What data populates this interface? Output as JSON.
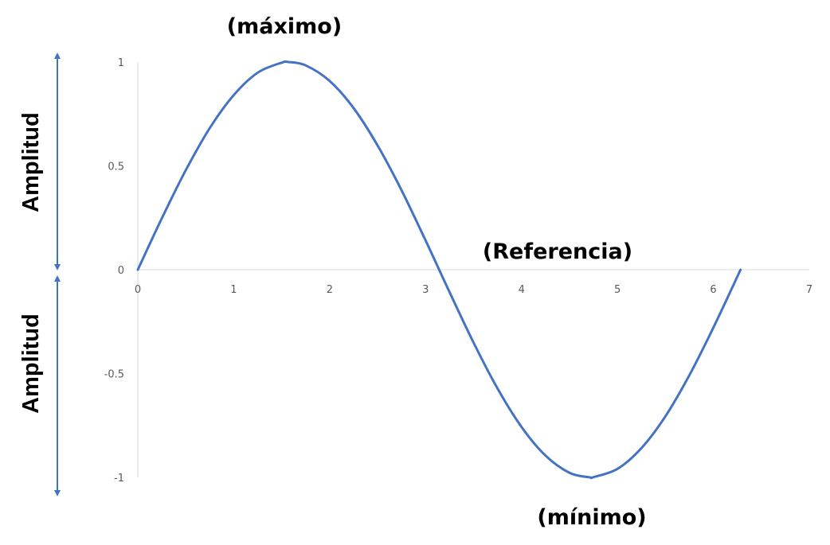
{
  "chart_data": {
    "type": "line",
    "title": "",
    "xlabel": "",
    "ylabel": "",
    "xlim": [
      0,
      7
    ],
    "ylim": [
      -1,
      1
    ],
    "x_ticks": [
      0,
      1,
      2,
      3,
      4,
      5,
      6,
      7
    ],
    "x_tick_labels": [
      "0",
      "1",
      "2",
      "3",
      "4",
      "5",
      "6",
      "7"
    ],
    "y_ticks": [
      1,
      0.5,
      0,
      -0.5,
      -1
    ],
    "y_tick_labels": [
      "1",
      "0.5",
      "0",
      "-0.5",
      "-1"
    ],
    "grid": false,
    "legend": "none",
    "series": [
      {
        "x": [
          0,
          0.25,
          0.5,
          0.75,
          1,
          1.25,
          1.5,
          1.5708,
          1.75,
          2,
          2.25,
          2.5,
          2.75,
          3,
          3.1416,
          3.25,
          3.5,
          3.75,
          4,
          4.25,
          4.5,
          4.7124,
          4.75,
          5,
          5.25,
          5.5,
          5.75,
          6,
          6.2832
        ],
        "y": [
          0,
          0.247,
          0.479,
          0.682,
          0.841,
          0.949,
          0.997,
          1,
          0.984,
          0.909,
          0.778,
          0.598,
          0.382,
          0.141,
          0,
          -0.108,
          -0.351,
          -0.572,
          -0.757,
          -0.895,
          -0.978,
          -1,
          -0.999,
          -0.959,
          -0.859,
          -0.706,
          -0.508,
          -0.279,
          0
        ],
        "color": "#4472c4"
      }
    ],
    "annotations": {
      "max": "(máximo)",
      "min": "(mínimo)",
      "reference": "(Referencia)",
      "amplitude_top": "Amplitud",
      "amplitude_bottom": "Amplitud"
    }
  },
  "colors": {
    "line": "#4472c4",
    "axis": "#d9d9d9",
    "arrow": "#4472c4"
  }
}
